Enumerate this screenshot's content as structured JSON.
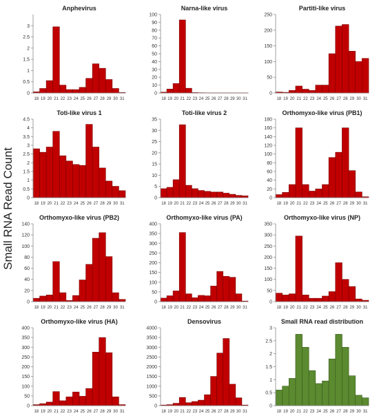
{
  "figure": {
    "ylabel": "Small RNA Read Count"
  },
  "colors": {
    "red": "#c00000",
    "red_edge": "#7a0000",
    "green": "#5b8a30",
    "green_edge": "#3a5a1d"
  },
  "chart_data": [
    {
      "type": "bar",
      "title": "Anphevirus",
      "color": "red",
      "categories": [
        "18",
        "19",
        "20",
        "21",
        "22",
        "23",
        "24",
        "25",
        "26",
        "27",
        "28",
        "29",
        "30",
        "31"
      ],
      "values": [
        0.05,
        0.2,
        0.55,
        2.95,
        0.35,
        0.15,
        0.15,
        0.25,
        0.65,
        1.3,
        1.1,
        0.6,
        0.2,
        0.02
      ],
      "yticks": [
        0,
        0.5,
        1,
        1.5,
        2,
        2.5,
        3
      ],
      "ytick_labels": [
        "0",
        "0.5",
        "1",
        "1.5",
        "2",
        "2.5",
        "3"
      ],
      "ylim": [
        0,
        3.5
      ]
    },
    {
      "type": "bar",
      "title": "Narna-like virus",
      "color": "red",
      "categories": [
        "18",
        "19",
        "20",
        "21",
        "22",
        "23",
        "24",
        "25",
        "26",
        "27",
        "28",
        "29",
        "30",
        "31"
      ],
      "values": [
        1,
        5,
        12,
        93,
        6,
        0.5,
        0.3,
        0.2,
        0.2,
        0.2,
        0.2,
        0.2,
        0.2,
        0.2
      ],
      "yticks": [
        0,
        10,
        20,
        30,
        40,
        50,
        60,
        70,
        80,
        90,
        100
      ],
      "ytick_labels": [
        "0",
        "10",
        "20",
        "30",
        "40",
        "50",
        "60",
        "70",
        "80",
        "90",
        "100"
      ],
      "ylim": [
        0,
        100
      ]
    },
    {
      "type": "bar",
      "title": "Partiti-like virus",
      "color": "red",
      "categories": [
        "18",
        "19",
        "20",
        "21",
        "22",
        "23",
        "24",
        "25",
        "26",
        "27",
        "28",
        "29",
        "30",
        "31"
      ],
      "values": [
        3,
        2,
        8,
        22,
        12,
        8,
        25,
        25,
        125,
        213,
        218,
        133,
        100,
        110
      ],
      "yticks": [
        0,
        50,
        100,
        150,
        200,
        250
      ],
      "ytick_labels": [
        "0",
        "50",
        "100",
        "150",
        "200",
        "250"
      ],
      "ylim": [
        0,
        250
      ]
    },
    {
      "type": "bar",
      "title": "Toti-like virus 1",
      "color": "red",
      "categories": [
        "18",
        "19",
        "20",
        "21",
        "22",
        "23",
        "24",
        "25",
        "26",
        "27",
        "28",
        "29",
        "30",
        "31"
      ],
      "values": [
        2.8,
        2.6,
        2.9,
        3.8,
        2.4,
        2.1,
        1.9,
        1.85,
        4.2,
        2.9,
        1.7,
        0.95,
        0.65,
        0.4
      ],
      "yticks": [
        0,
        0.5,
        1,
        1.5,
        2,
        2.5,
        3,
        3.5,
        4,
        4.5
      ],
      "ytick_labels": [
        "0",
        "0.5",
        "1",
        "1.5",
        "2",
        "2.5",
        "3",
        "3.5",
        "4",
        "4.5"
      ],
      "ylim": [
        0,
        4.5
      ]
    },
    {
      "type": "bar",
      "title": "Toti-like virus 2",
      "color": "red",
      "categories": [
        "18",
        "19",
        "20",
        "21",
        "22",
        "23",
        "24",
        "25",
        "26",
        "27",
        "28",
        "29",
        "30",
        "31"
      ],
      "values": [
        4,
        4.6,
        8,
        32.5,
        5.5,
        4,
        3.2,
        2.8,
        2.5,
        2.5,
        2,
        1.5,
        1,
        0.8
      ],
      "yticks": [
        0,
        5,
        10,
        15,
        20,
        25,
        30,
        35
      ],
      "ytick_labels": [
        "0",
        "5",
        "10",
        "15",
        "20",
        "25",
        "30",
        "35"
      ],
      "ylim": [
        0,
        35
      ]
    },
    {
      "type": "bar",
      "title": "Orthomyxo-like virus (PB1)",
      "color": "red",
      "categories": [
        "18",
        "19",
        "20",
        "21",
        "22",
        "23",
        "24",
        "25",
        "26",
        "27",
        "28",
        "29",
        "30",
        "31"
      ],
      "values": [
        7,
        12,
        30,
        160,
        30,
        15,
        20,
        30,
        92,
        104,
        160,
        62,
        13,
        2
      ],
      "yticks": [
        0,
        20,
        40,
        60,
        80,
        100,
        120,
        140,
        160,
        180
      ],
      "ytick_labels": [
        "0",
        "20",
        "40",
        "60",
        "80",
        "100",
        "120",
        "140",
        "160",
        "180"
      ],
      "ylim": [
        0,
        180
      ]
    },
    {
      "type": "bar",
      "title": "Orthomyxo-like virus (PB2)",
      "color": "red",
      "categories": [
        "18",
        "19",
        "20",
        "21",
        "22",
        "23",
        "24",
        "25",
        "26",
        "27",
        "28",
        "29",
        "30",
        "31"
      ],
      "values": [
        6,
        10,
        12,
        72,
        16,
        2,
        11,
        39,
        67,
        114,
        124,
        81,
        16,
        4
      ],
      "yticks": [
        0,
        20,
        40,
        60,
        80,
        100,
        120,
        140
      ],
      "ytick_labels": [
        "0",
        "20",
        "40",
        "60",
        "80",
        "100",
        "120",
        "140"
      ],
      "ylim": [
        0,
        140
      ]
    },
    {
      "type": "bar",
      "title": "Orthomyxo-like virus (PA)",
      "color": "red",
      "categories": [
        "18",
        "19",
        "20",
        "21",
        "22",
        "23",
        "24",
        "25",
        "26",
        "27",
        "28",
        "29",
        "30",
        "31"
      ],
      "values": [
        18,
        30,
        55,
        355,
        40,
        20,
        32,
        30,
        80,
        155,
        130,
        125,
        40,
        3
      ],
      "yticks": [
        0,
        50,
        100,
        150,
        200,
        250,
        300,
        350,
        400
      ],
      "ytick_labels": [
        "0",
        "50",
        "100",
        "150",
        "200",
        "250",
        "300",
        "350",
        "400"
      ],
      "ylim": [
        0,
        400
      ]
    },
    {
      "type": "bar",
      "title": "Orthomyxo-like virus (NP)",
      "color": "red",
      "categories": [
        "18",
        "19",
        "20",
        "21",
        "22",
        "23",
        "24",
        "25",
        "26",
        "27",
        "28",
        "29",
        "30",
        "31"
      ],
      "values": [
        38,
        30,
        35,
        295,
        30,
        15,
        15,
        25,
        45,
        175,
        100,
        68,
        12,
        6
      ],
      "yticks": [
        0,
        50,
        100,
        150,
        200,
        250,
        300,
        350
      ],
      "ytick_labels": [
        "0",
        "50",
        "100",
        "150",
        "200",
        "250",
        "300",
        "350"
      ],
      "ylim": [
        0,
        350
      ]
    },
    {
      "type": "bar",
      "title": "Orthomyxo-like virus (HA)",
      "color": "red",
      "categories": [
        "18",
        "19",
        "20",
        "21",
        "22",
        "23",
        "24",
        "25",
        "26",
        "27",
        "28",
        "29",
        "30",
        "31"
      ],
      "values": [
        5,
        10,
        18,
        72,
        25,
        45,
        70,
        48,
        88,
        275,
        350,
        272,
        45,
        5
      ],
      "yticks": [
        0,
        50,
        100,
        150,
        200,
        250,
        300,
        350,
        400
      ],
      "ytick_labels": [
        "0",
        "50",
        "100",
        "150",
        "200",
        "250",
        "300",
        "350",
        "400"
      ],
      "ylim": [
        0,
        400
      ]
    },
    {
      "type": "bar",
      "title": "Densovirus",
      "color": "red",
      "categories": [
        "18",
        "19",
        "20",
        "21",
        "22",
        "23",
        "24",
        "25",
        "26",
        "27",
        "28",
        "29",
        "30",
        "31"
      ],
      "values": [
        30,
        50,
        120,
        420,
        150,
        210,
        280,
        560,
        1500,
        2700,
        3450,
        1100,
        400,
        30
      ],
      "yticks": [
        0,
        500,
        1000,
        1500,
        2000,
        2500,
        3000,
        3500,
        4000
      ],
      "ytick_labels": [
        "0",
        "500",
        "1000",
        "1500",
        "2000",
        "2500",
        "3000",
        "3500",
        "4000"
      ],
      "ylim": [
        0,
        4000
      ]
    },
    {
      "type": "bar",
      "title": "Small RNA read distribution",
      "color": "green",
      "categories": [
        "18",
        "19",
        "20",
        "21",
        "22",
        "23",
        "24",
        "25",
        "26",
        "27",
        "28",
        "29",
        "30",
        "31"
      ],
      "values": [
        0.6,
        0.75,
        1.05,
        2.75,
        2.25,
        1.35,
        0.85,
        0.95,
        1.8,
        2.75,
        2.25,
        1.15,
        0.4,
        0.3
      ],
      "yticks": [
        0,
        0.5,
        1,
        1.5,
        2,
        2.5,
        3
      ],
      "ytick_labels": [
        "0",
        "0.5",
        "1",
        "1.5",
        "2",
        "2.5",
        "3"
      ],
      "ylim": [
        0,
        3
      ]
    }
  ]
}
